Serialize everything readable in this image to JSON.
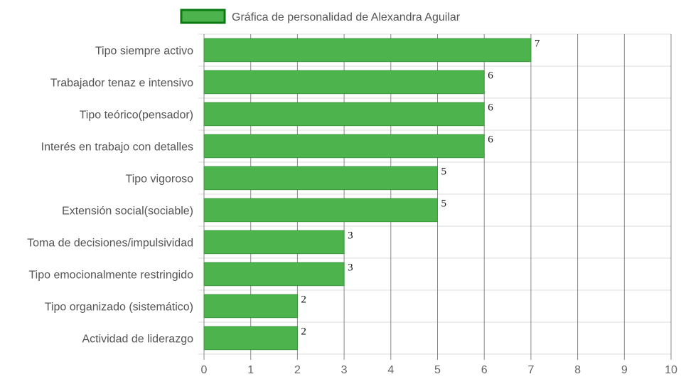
{
  "chart_data": {
    "type": "bar",
    "orientation": "horizontal",
    "title": "",
    "legend": {
      "label": "Gráfica de personalidad de Alexandra Aguilar",
      "position": "top",
      "color": "#4db34d",
      "border_color": "#0a7a12"
    },
    "categories": [
      "Tipo siempre activo",
      "Trabajador tenaz e intensivo",
      "Tipo teórico(pensador)",
      "Interés en trabajo con detalles",
      "Tipo vigoroso",
      "Extensión social(sociable)",
      "Toma de decisiones/impulsividad",
      "Tipo emocionalmente restringido",
      "Tipo organizado (sistemático)",
      "Actividad de liderazgo"
    ],
    "values": [
      7,
      6,
      6,
      6,
      5,
      5,
      3,
      3,
      2,
      2
    ],
    "xlim": [
      0,
      10
    ],
    "x_ticks": [
      "0",
      "1",
      "2",
      "3",
      "4",
      "5",
      "6",
      "7",
      "8",
      "9",
      "10"
    ],
    "grid": true,
    "colors": {
      "bar": "#4db34d",
      "bar_border": "#3a9a3a",
      "vertical_grid": "#888888",
      "horizontal_grid": "#dddddd"
    }
  }
}
